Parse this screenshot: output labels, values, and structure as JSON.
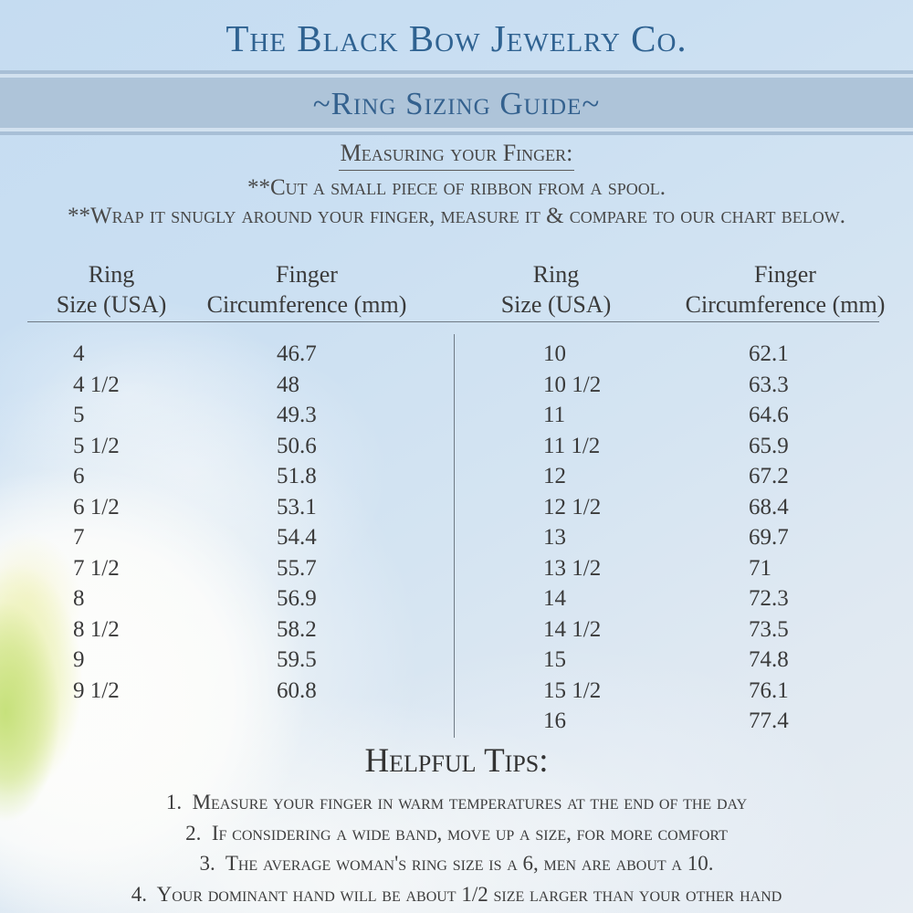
{
  "header": {
    "company_name": "The Black Bow Jewelry Co.",
    "banner_title": "~Ring Sizing Guide~"
  },
  "instructions": {
    "title": "Measuring your Finger:",
    "line1": "**Cut a small piece of ribbon from a spool.",
    "line2": "**Wrap it snugly around your finger, measure it & compare to our chart below."
  },
  "table": {
    "headers": {
      "size_line1": "Ring",
      "size_line2": "Size (USA)",
      "circ_line1": "Finger",
      "circ_line2": "Circumference (mm)"
    },
    "left_rows": [
      [
        "4",
        "46.7"
      ],
      [
        "4 1/2",
        "48"
      ],
      [
        "5",
        "49.3"
      ],
      [
        "5 1/2",
        "50.6"
      ],
      [
        "6",
        "51.8"
      ],
      [
        "6 1/2",
        "53.1"
      ],
      [
        "7",
        "54.4"
      ],
      [
        "7 1/2",
        "55.7"
      ],
      [
        "8",
        "56.9"
      ],
      [
        "8 1/2",
        "58.2"
      ],
      [
        "9",
        "59.5"
      ],
      [
        "9 1/2",
        "60.8"
      ]
    ],
    "right_rows": [
      [
        "10",
        "62.1"
      ],
      [
        "10 1/2",
        "63.3"
      ],
      [
        "11",
        "64.6"
      ],
      [
        "11 1/2",
        "65.9"
      ],
      [
        "12",
        "67.2"
      ],
      [
        "12 1/2",
        "68.4"
      ],
      [
        "13",
        "69.7"
      ],
      [
        "13 1/2",
        "71"
      ],
      [
        "14",
        "72.3"
      ],
      [
        "14 1/2",
        "73.5"
      ],
      [
        "15",
        "74.8"
      ],
      [
        "15 1/2",
        "76.1"
      ],
      [
        "16",
        "77.4"
      ]
    ]
  },
  "tips": {
    "title": "Helpful Tips:",
    "items": [
      "1.  Measure your finger in warm temperatures at the end of the day",
      "2.  If considering a wide band, move up a size, for more comfort",
      "3.  The average woman's ring size is a 6, men are about a 10.",
      "4.  Your dominant hand will be about 1/2 size larger than your other hand"
    ]
  },
  "colors": {
    "background_top": "#c5dcf1",
    "background_bottom": "#e7edf3",
    "banner_band": "#aec4d9",
    "banner_stripe_light": "#d2e1ef",
    "banner_stripe_dark": "#a8bfd6",
    "brand_blue": "#2f6291",
    "body_text_gray": "#484848",
    "table_text": "#3a3a3a",
    "flower_center_green": "#cde487"
  }
}
